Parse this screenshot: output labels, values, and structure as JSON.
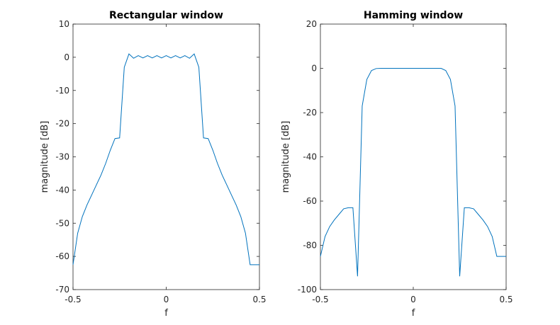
{
  "chart_data": [
    {
      "type": "line",
      "title": "Rectangular window",
      "xlabel": "f",
      "ylabel": "magnitude [dB]",
      "xlim": [
        -0.5,
        0.5
      ],
      "ylim": [
        -70,
        10
      ],
      "xticks": [
        -0.5,
        0,
        0.5
      ],
      "xtick_labels": [
        "-0.5",
        "0",
        "0.5"
      ],
      "yticks": [
        10,
        0,
        -10,
        -20,
        -30,
        -40,
        -50,
        -60,
        -70
      ],
      "ytick_labels": [
        "10",
        "0",
        "-10",
        "-20",
        "-30",
        "-40",
        "-50",
        "-60",
        "-70"
      ],
      "grid": false,
      "line_color": "#0072BD",
      "x": [
        -0.5,
        -0.475,
        -0.45,
        -0.425,
        -0.4,
        -0.375,
        -0.35,
        -0.325,
        -0.3,
        -0.275,
        -0.25,
        -0.225,
        -0.2,
        -0.175,
        -0.15,
        -0.125,
        -0.1,
        -0.075,
        -0.05,
        -0.025,
        0,
        0.025,
        0.05,
        0.075,
        0.1,
        0.125,
        0.15,
        0.175,
        0.2,
        0.225,
        0.25,
        0.275,
        0.3,
        0.325,
        0.35,
        0.375,
        0.4,
        0.425,
        0.45,
        0.475,
        0.5
      ],
      "y": [
        -62.5,
        -53,
        -48,
        -44.5,
        -41.5,
        -38.5,
        -35.5,
        -32,
        -28,
        -24.5,
        -24.3,
        -3,
        1,
        -0.3,
        0.5,
        -0.2,
        0.5,
        -0.2,
        0.5,
        -0.2,
        0.5,
        -0.2,
        0.5,
        -0.2,
        0.5,
        -0.3,
        1,
        -3,
        -24.3,
        -24.5,
        -28,
        -32,
        -35.5,
        -38.5,
        -41.5,
        -44.5,
        -48,
        -53,
        -62.5,
        -62.5,
        -62.5
      ]
    },
    {
      "type": "line",
      "title": "Hamming window",
      "xlabel": "f",
      "ylabel": "magnitude [dB]",
      "xlim": [
        -0.5,
        0.5
      ],
      "ylim": [
        -100,
        20
      ],
      "xticks": [
        -0.5,
        0,
        0.5
      ],
      "xtick_labels": [
        "-0.5",
        "0",
        "0.5"
      ],
      "yticks": [
        20,
        0,
        -20,
        -40,
        -60,
        -80,
        -100
      ],
      "ytick_labels": [
        "20",
        "0",
        "-20",
        "-40",
        "-60",
        "-80",
        "-100"
      ],
      "grid": false,
      "line_color": "#0072BD",
      "x": [
        -0.5,
        -0.475,
        -0.45,
        -0.425,
        -0.4,
        -0.375,
        -0.35,
        -0.325,
        -0.3,
        -0.275,
        -0.25,
        -0.225,
        -0.2,
        -0.175,
        -0.15,
        -0.125,
        -0.1,
        -0.075,
        -0.05,
        -0.025,
        0,
        0.025,
        0.05,
        0.075,
        0.1,
        0.125,
        0.15,
        0.175,
        0.2,
        0.225,
        0.25,
        0.275,
        0.3,
        0.325,
        0.35,
        0.375,
        0.4,
        0.425,
        0.45,
        0.475,
        0.5
      ],
      "y": [
        -85,
        -76,
        -71.5,
        -68.5,
        -66,
        -63.5,
        -63,
        -63,
        -94,
        -17,
        -5,
        -1,
        -0.1,
        0,
        0,
        0,
        0,
        0,
        0,
        0,
        0,
        0,
        0,
        0,
        0,
        0,
        0,
        -1,
        -5,
        -17,
        -94,
        -63,
        -63,
        -63.5,
        -66,
        -68.5,
        -71.5,
        -76,
        -85,
        -85,
        -85
      ]
    }
  ]
}
